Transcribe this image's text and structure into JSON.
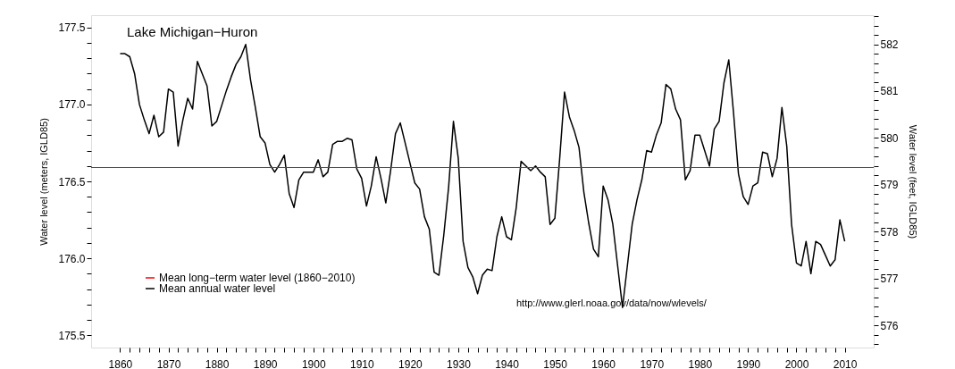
{
  "chart_data": {
    "type": "line",
    "title": "Lake Michigan−Huron",
    "ylabel": "Water level (meters, IGLD85)",
    "y2label": "Water level (feet, IGLD85)",
    "x": [
      1860,
      1861,
      1862,
      1863,
      1864,
      1865,
      1866,
      1867,
      1868,
      1869,
      1870,
      1871,
      1872,
      1873,
      1874,
      1875,
      1876,
      1877,
      1878,
      1879,
      1880,
      1881,
      1882,
      1883,
      1884,
      1885,
      1886,
      1887,
      1888,
      1889,
      1890,
      1891,
      1892,
      1893,
      1894,
      1895,
      1896,
      1897,
      1898,
      1899,
      1900,
      1901,
      1902,
      1903,
      1904,
      1905,
      1906,
      1907,
      1908,
      1909,
      1910,
      1911,
      1912,
      1913,
      1914,
      1915,
      1916,
      1917,
      1918,
      1919,
      1920,
      1921,
      1922,
      1923,
      1924,
      1925,
      1926,
      1927,
      1928,
      1929,
      1930,
      1931,
      1932,
      1933,
      1934,
      1935,
      1936,
      1937,
      1938,
      1939,
      1940,
      1941,
      1942,
      1943,
      1944,
      1945,
      1946,
      1947,
      1948,
      1949,
      1950,
      1951,
      1952,
      1953,
      1954,
      1955,
      1956,
      1957,
      1958,
      1959,
      1960,
      1961,
      1962,
      1963,
      1964,
      1965,
      1966,
      1967,
      1968,
      1969,
      1970,
      1971,
      1972,
      1973,
      1974,
      1975,
      1976,
      1977,
      1978,
      1979,
      1980,
      1981,
      1982,
      1983,
      1984,
      1985,
      1986,
      1987,
      1988,
      1989,
      1990,
      1991,
      1992,
      1993,
      1994,
      1995,
      1996,
      1997,
      1998,
      1999,
      2000,
      2001,
      2002,
      2003,
      2004,
      2005,
      2006,
      2007,
      2008,
      2009,
      2010
    ],
    "series": [
      {
        "name": "Mean annual water level",
        "color": "#000000",
        "values": [
          177.33,
          177.33,
          177.31,
          177.2,
          177.0,
          176.9,
          176.81,
          176.93,
          176.79,
          176.82,
          177.1,
          177.08,
          176.73,
          176.9,
          177.04,
          176.97,
          177.28,
          177.2,
          177.12,
          176.86,
          176.89,
          176.99,
          177.09,
          177.18,
          177.26,
          177.31,
          177.39,
          177.16,
          176.98,
          176.79,
          176.75,
          176.61,
          176.56,
          176.61,
          176.67,
          176.42,
          176.33,
          176.51,
          176.56,
          176.56,
          176.56,
          176.64,
          176.53,
          176.56,
          176.74,
          176.76,
          176.76,
          176.78,
          176.77,
          176.58,
          176.52,
          176.34,
          176.47,
          176.66,
          176.52,
          176.36,
          176.57,
          176.81,
          176.88,
          176.75,
          176.62,
          176.49,
          176.45,
          176.27,
          176.19,
          175.91,
          175.89,
          176.15,
          176.46,
          176.89,
          176.65,
          176.11,
          175.94,
          175.88,
          175.77,
          175.89,
          175.93,
          175.92,
          176.14,
          176.27,
          176.14,
          176.12,
          176.33,
          176.63,
          176.6,
          176.57,
          176.6,
          176.56,
          176.53,
          176.22,
          176.26,
          176.65,
          177.08,
          176.92,
          176.83,
          176.72,
          176.43,
          176.23,
          176.06,
          176.01,
          176.47,
          176.38,
          176.22,
          175.95,
          175.68,
          175.95,
          176.22,
          176.38,
          176.51,
          176.7,
          176.69,
          176.8,
          176.88,
          177.13,
          177.1,
          176.97,
          176.9,
          176.51,
          176.57,
          176.8,
          176.8,
          176.7,
          176.6,
          176.84,
          176.89,
          177.14,
          177.29,
          176.94,
          176.55,
          176.4,
          176.35,
          176.47,
          176.49,
          176.69,
          176.68,
          176.53,
          176.65,
          176.98,
          176.73,
          176.22,
          175.97,
          175.95,
          176.11,
          175.9,
          176.11,
          176.09,
          176.02,
          175.95,
          175.99,
          176.25,
          176.11
        ]
      }
    ],
    "ref_lines": [
      {
        "axis": "y",
        "value": 176.59,
        "label": "Mean long−term water level (1860−2010)",
        "color": "#ff0000"
      }
    ],
    "annotations": [
      "http://www.glerl.noaa.gov/data/now/wlevels/"
    ],
    "xlim": [
      1854,
      2016
    ],
    "xticks": [
      1860,
      {
        "value": 1862,
        "label": null
      },
      {
        "value": 1864,
        "label": null
      },
      {
        "value": 1866,
        "label": null
      },
      {
        "value": 1868,
        "label": null
      },
      1870,
      {
        "value": 1872,
        "label": null
      },
      {
        "value": 1874,
        "label": null
      },
      {
        "value": 1876,
        "label": null
      },
      {
        "value": 1878,
        "label": null
      },
      1880,
      {
        "value": 1882,
        "label": null
      },
      {
        "value": 1884,
        "label": null
      },
      {
        "value": 1886,
        "label": null
      },
      {
        "value": 1888,
        "label": null
      },
      1890,
      {
        "value": 1892,
        "label": null
      },
      {
        "value": 1894,
        "label": null
      },
      {
        "value": 1896,
        "label": null
      },
      {
        "value": 1898,
        "label": null
      },
      1900,
      {
        "value": 1902,
        "label": null
      },
      {
        "value": 1904,
        "label": null
      },
      {
        "value": 1906,
        "label": null
      },
      {
        "value": 1908,
        "label": null
      },
      1910,
      {
        "value": 1912,
        "label": null
      },
      {
        "value": 1914,
        "label": null
      },
      {
        "value": 1916,
        "label": null
      },
      {
        "value": 1918,
        "label": null
      },
      1920,
      {
        "value": 1922,
        "label": null
      },
      {
        "value": 1924,
        "label": null
      },
      {
        "value": 1926,
        "label": null
      },
      {
        "value": 1928,
        "label": null
      },
      1930,
      {
        "value": 1932,
        "label": null
      },
      {
        "value": 1934,
        "label": null
      },
      {
        "value": 1936,
        "label": null
      },
      {
        "value": 1938,
        "label": null
      },
      1940,
      {
        "value": 1942,
        "label": null
      },
      {
        "value": 1944,
        "label": null
      },
      {
        "value": 1946,
        "label": null
      },
      {
        "value": 1948,
        "label": null
      },
      1950,
      {
        "value": 1952,
        "label": null
      },
      {
        "value": 1954,
        "label": null
      },
      {
        "value": 1956,
        "label": null
      },
      {
        "value": 1958,
        "label": null
      },
      1960,
      {
        "value": 1962,
        "label": null
      },
      {
        "value": 1964,
        "label": null
      },
      {
        "value": 1966,
        "label": null
      },
      {
        "value": 1968,
        "label": null
      },
      1970,
      {
        "value": 1972,
        "label": null
      },
      {
        "value": 1974,
        "label": null
      },
      {
        "value": 1976,
        "label": null
      },
      {
        "value": 1978,
        "label": null
      },
      1980,
      {
        "value": 1982,
        "label": null
      },
      {
        "value": 1984,
        "label": null
      },
      {
        "value": 1986,
        "label": null
      },
      {
        "value": 1988,
        "label": null
      },
      1990,
      {
        "value": 1992,
        "label": null
      },
      {
        "value": 1994,
        "label": null
      },
      {
        "value": 1996,
        "label": null
      },
      {
        "value": 1998,
        "label": null
      },
      2000,
      {
        "value": 2002,
        "label": null
      },
      {
        "value": 2004,
        "label": null
      },
      {
        "value": 2006,
        "label": null
      },
      {
        "value": 2008,
        "label": null
      },
      2010
    ],
    "ylim": [
      175.42,
      177.58
    ],
    "yticks": [
      175.5,
      {
        "value": 175.6,
        "label": null
      },
      {
        "value": 175.7,
        "label": null
      },
      {
        "value": 175.8,
        "label": null
      },
      {
        "value": 175.9,
        "label": null
      },
      {
        "value": 176,
        "label": "176.0"
      },
      {
        "value": 176.1,
        "label": null
      },
      {
        "value": 176.2,
        "label": null
      },
      {
        "value": 176.3,
        "label": null
      },
      {
        "value": 176.4,
        "label": null
      },
      176.5,
      {
        "value": 176.6,
        "label": null
      },
      {
        "value": 176.7,
        "label": null
      },
      {
        "value": 176.8,
        "label": null
      },
      {
        "value": 176.9,
        "label": null
      },
      {
        "value": 177,
        "label": "177.0"
      },
      {
        "value": 177.1,
        "label": null
      },
      {
        "value": 177.2,
        "label": null
      },
      {
        "value": 177.3,
        "label": null
      },
      {
        "value": 177.4,
        "label": null
      },
      177.5
    ],
    "y2lim": [
      575.53,
      582.62
    ],
    "y2ticks": [
      {
        "value": 575.6,
        "label": null
      },
      {
        "value": 575.8,
        "label": null
      },
      576,
      {
        "value": 576.2,
        "label": null
      },
      {
        "value": 576.4,
        "label": null
      },
      {
        "value": 576.6,
        "label": null
      },
      {
        "value": 576.8,
        "label": null
      },
      577,
      {
        "value": 577.2,
        "label": null
      },
      {
        "value": 577.4,
        "label": null
      },
      {
        "value": 577.6,
        "label": null
      },
      {
        "value": 577.8,
        "label": null
      },
      578,
      {
        "value": 578.2,
        "label": null
      },
      {
        "value": 578.4,
        "label": null
      },
      {
        "value": 578.6,
        "label": null
      },
      {
        "value": 578.8,
        "label": null
      },
      579,
      {
        "value": 579.2,
        "label": null
      },
      {
        "value": 579.4,
        "label": null
      },
      {
        "value": 579.6,
        "label": null
      },
      {
        "value": 579.8,
        "label": null
      },
      580,
      {
        "value": 580.2,
        "label": null
      },
      {
        "value": 580.4,
        "label": null
      },
      {
        "value": 580.6,
        "label": null
      },
      {
        "value": 580.8,
        "label": null
      },
      581,
      {
        "value": 581.2,
        "label": null
      },
      {
        "value": 581.4,
        "label": null
      },
      {
        "value": 581.6,
        "label": null
      },
      {
        "value": 581.8,
        "label": null
      },
      582,
      {
        "value": 582.2,
        "label": null
      },
      {
        "value": 582.4,
        "label": null
      },
      {
        "value": 582.6,
        "label": null
      }
    ],
    "grid": false,
    "legend": "bottom left",
    "marker": "none",
    "line_style": "solid"
  }
}
